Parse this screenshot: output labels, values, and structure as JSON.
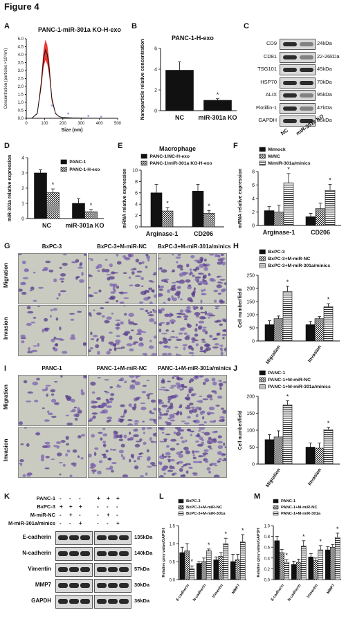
{
  "figure_title": "Figure 4",
  "panels": {
    "A": {
      "label": "A",
      "title": "PANC-1-miR-301a KO-H-exo",
      "ylabel": "Concentration (particles ×10⁶/ml)",
      "xlabel": "Size (nm)",
      "yticks": [
        "0.0",
        "0.5",
        "1.0",
        "1.5",
        "2.0",
        "2.5",
        "3.0",
        "3.5",
        "4.0",
        "4.5",
        "5.0"
      ],
      "xticks": [
        "0",
        "100",
        "200",
        "300",
        "400",
        "500"
      ]
    },
    "B": {
      "label": "B",
      "title": "PANC-1-H-exo",
      "ylabel": "Nanoparticle relative concentration",
      "yticks": [
        "0",
        "2",
        "4",
        "6"
      ],
      "categories": [
        "NC",
        "miR-301a KO"
      ],
      "sig": "*"
    },
    "C": {
      "label": "C",
      "proteins": [
        "CD9",
        "CD81",
        "TSG101",
        "HSP70",
        "ALIX",
        "Flotillin-1",
        "GAPDH"
      ],
      "sizes": [
        "24kDa",
        "22-26kDa",
        "45kDa",
        "70kDa",
        "95kDa",
        "47kDa",
        "36kDa"
      ],
      "lanes": [
        "NC",
        "miR-301a KO"
      ]
    },
    "D": {
      "label": "D",
      "ylabel": "miR-301a relative expression",
      "yticks": [
        "0",
        "1",
        "2",
        "3",
        "4"
      ],
      "categories": [
        "NC",
        "miR-301a KO"
      ],
      "legend": [
        "PANC-1",
        "PANC-1-H-exo"
      ],
      "sig": [
        "*",
        "*"
      ]
    },
    "E": {
      "label": "E",
      "title": "Macrophage",
      "ylabel": "mRNA relative expression",
      "yticks": [
        "0",
        "2",
        "4",
        "6",
        "8",
        "10"
      ],
      "categories": [
        "Arginase-1",
        "CD206"
      ],
      "legend": [
        "PANC-1/NC-H-exo",
        "PANC-1/miR-301a KO-H-exo"
      ],
      "sig": [
        "*",
        "*"
      ]
    },
    "F": {
      "label": "F",
      "ylabel": "mRNA relative expression",
      "yticks": [
        "0",
        "2",
        "4",
        "6",
        "8"
      ],
      "categories": [
        "Arginase-1",
        "CD206"
      ],
      "legend": [
        "M/mock",
        "M/NC",
        "M/miR-301a/minics"
      ],
      "sig": [
        "*",
        "*"
      ]
    },
    "G": {
      "label": "G",
      "cols": [
        "BxPC-3",
        "BxPC-3+M-miR-NC",
        "BxPC-3+M-miR-301a/minics"
      ],
      "rows": [
        "Migration",
        "Invasion"
      ]
    },
    "H": {
      "label": "H",
      "ylabel": "Cell number/field",
      "yticks": [
        "0",
        "50",
        "100",
        "150",
        "200",
        "250"
      ],
      "categories": [
        "Migration",
        "Invasion"
      ],
      "legend": [
        "BxPC-3",
        "BxPC-3+M-miR-NC",
        "BxPC-3+M-miR-301a/minics"
      ],
      "sig": [
        "*",
        "*"
      ]
    },
    "I": {
      "label": "I",
      "cols": [
        "PANC-1",
        "PANC-1+M-miR-NC",
        "PANC-1+M-miR-301a/minics"
      ],
      "rows": [
        "Migration",
        "Invasion"
      ]
    },
    "J": {
      "label": "J",
      "ylabel": "Cell number/field",
      "yticks": [
        "0",
        "50",
        "100",
        "150",
        "200"
      ],
      "categories": [
        "Migration",
        "Invasion"
      ],
      "legend": [
        "PANC-1",
        "PANC-1+M-miR-NC",
        "PANC-1+M-miR-301a/minics"
      ],
      "sig": [
        "*",
        "*"
      ]
    },
    "K": {
      "label": "K",
      "row_labels": [
        "PANC-1",
        "BxPC-3",
        "M-miR-NC",
        "M-miR-301a/minics"
      ],
      "signs": [
        [
          "-",
          "-",
          "-",
          "+",
          "+",
          "+"
        ],
        [
          "+",
          "+",
          "+",
          "-",
          "-",
          "-"
        ],
        [
          "-",
          "+",
          "-",
          "-",
          "+",
          "-"
        ],
        [
          "-",
          "-",
          "+",
          "-",
          "-",
          "+"
        ]
      ],
      "proteins": [
        "E-cadherin",
        "N-cadherin",
        "Vimentin",
        "MMP7",
        "GAPDH"
      ],
      "sizes": [
        "135kDa",
        "140kDa",
        "57kDa",
        "30kDa",
        "36kDa"
      ]
    },
    "L": {
      "label": "L",
      "ylabel": "Relative grey value/GAPDH",
      "yticks": [
        "0.0",
        "0.5",
        "1.0",
        "1.5"
      ],
      "categories": [
        "E-cadherin",
        "N-cadherin",
        "Vimentin",
        "MMP7"
      ],
      "legend": [
        "BxPC-3",
        "BxPC-3+M-miR-NC",
        "BxPC-3+M-miR-301a"
      ],
      "sig": [
        "*",
        "*",
        "*",
        "*"
      ]
    },
    "M": {
      "label": "M",
      "ylabel": "Relative grey value/GAPDH",
      "yticks": [
        "0.0",
        "0.2",
        "0.4",
        "0.6",
        "0.8",
        "1.0"
      ],
      "categories": [
        "E-cadherin",
        "N-cadherin",
        "Vimentin",
        "MMP7"
      ],
      "legend": [
        "PANC-1",
        "PANC-1+M-miR-NC",
        "PANC-1+M-miR-301a"
      ],
      "sig": [
        "*",
        "*",
        "*",
        "*"
      ]
    }
  },
  "chart_data": [
    {
      "id": "A",
      "type": "line",
      "title": "PANC-1-miR-301a KO-H-exo",
      "xlabel": "Size (nm)",
      "ylabel": "Concentration (particles ×10⁶/ml)",
      "xlim": [
        0,
        500
      ],
      "ylim": [
        0,
        5
      ],
      "x": [
        30,
        60,
        80,
        95,
        105,
        115,
        125,
        140,
        160,
        180,
        200,
        250,
        300,
        400,
        500
      ],
      "y": [
        0.0,
        0.3,
        2.0,
        3.8,
        4.3,
        4.0,
        3.2,
        1.2,
        0.3,
        0.1,
        0.05,
        0.02,
        0.01,
        0.0,
        0.0
      ]
    },
    {
      "id": "B",
      "type": "bar",
      "title": "PANC-1-H-exo",
      "categories": [
        "NC",
        "miR-301a KO"
      ],
      "values": [
        3.9,
        1.0
      ],
      "errors": [
        0.8,
        0.15
      ],
      "ylim": [
        0,
        6
      ],
      "ylabel": "Nanoparticle relative concentration"
    },
    {
      "id": "D",
      "type": "bar",
      "categories": [
        "NC",
        "miR-301a KO"
      ],
      "ylim": [
        0,
        4
      ],
      "ylabel": "miR-301a relative expression",
      "series": [
        {
          "name": "PANC-1",
          "values": [
            3.0,
            1.0
          ],
          "errors": [
            0.2,
            0.3
          ]
        },
        {
          "name": "PANC-1-H-exo",
          "values": [
            1.7,
            0.45
          ],
          "errors": [
            0.25,
            0.15
          ]
        }
      ]
    },
    {
      "id": "E",
      "type": "bar",
      "title": "Macrophage",
      "categories": [
        "Arginase-1",
        "CD206"
      ],
      "ylim": [
        0,
        10
      ],
      "ylabel": "mRNA relative expression",
      "series": [
        {
          "name": "PANC-1/NC-H-exo",
          "values": [
            6.0,
            6.3
          ],
          "errors": [
            1.5,
            1.2
          ]
        },
        {
          "name": "PANC-1/miR-301a KO-H-exo",
          "values": [
            2.8,
            2.4
          ],
          "errors": [
            0.6,
            0.5
          ]
        }
      ]
    },
    {
      "id": "F",
      "type": "bar",
      "categories": [
        "Arginase-1",
        "CD206"
      ],
      "ylim": [
        0,
        8
      ],
      "ylabel": "mRNA relative expression",
      "series": [
        {
          "name": "M/mock",
          "values": [
            2.2,
            1.3
          ],
          "errors": [
            0.6,
            0.5
          ]
        },
        {
          "name": "M/NC",
          "values": [
            2.0,
            2.5
          ],
          "errors": [
            1.0,
            0.8
          ]
        },
        {
          "name": "M/miR-301a/minics",
          "values": [
            6.3,
            5.2
          ],
          "errors": [
            1.4,
            0.9
          ]
        }
      ]
    },
    {
      "id": "H",
      "type": "bar",
      "categories": [
        "Migration",
        "Invasion"
      ],
      "ylim": [
        0,
        250
      ],
      "ylabel": "Cell number/field",
      "series": [
        {
          "name": "BxPC-3",
          "values": [
            62,
            62
          ],
          "errors": [
            15,
            12
          ]
        },
        {
          "name": "BxPC-3+M-miR-NC",
          "values": [
            85,
            85
          ],
          "errors": [
            10,
            8
          ]
        },
        {
          "name": "BxPC-3+M-miR-301a/minics",
          "values": [
            188,
            130
          ],
          "errors": [
            20,
            12
          ]
        }
      ]
    },
    {
      "id": "J",
      "type": "bar",
      "categories": [
        "Migration",
        "Invasion"
      ],
      "ylim": [
        0,
        200
      ],
      "ylabel": "Cell number/field",
      "series": [
        {
          "name": "PANC-1",
          "values": [
            72,
            50
          ],
          "errors": [
            15,
            12
          ]
        },
        {
          "name": "PANC-1+M-miR-NC",
          "values": [
            80,
            47
          ],
          "errors": [
            18,
            15
          ]
        },
        {
          "name": "PANC-1+M-miR-301a/minics",
          "values": [
            175,
            102
          ],
          "errors": [
            12,
            6
          ]
        }
      ]
    },
    {
      "id": "L",
      "type": "bar",
      "categories": [
        "E-cadherin",
        "N-cadherin",
        "Vimentin",
        "MMP7"
      ],
      "ylim": [
        0,
        1.5
      ],
      "ylabel": "Relative grey value/GAPDH",
      "series": [
        {
          "name": "BxPC-3",
          "values": [
            0.75,
            0.45,
            0.55,
            0.5
          ],
          "errors": [
            0.15,
            0.05,
            0.08,
            0.2
          ]
        },
        {
          "name": "BxPC-3+M-miR-NC",
          "values": [
            0.8,
            0.5,
            0.65,
            0.55
          ],
          "errors": [
            0.2,
            0.1,
            0.1,
            0.15
          ]
        },
        {
          "name": "BxPC-3+M-miR-301a",
          "values": [
            0.3,
            0.8,
            1.0,
            1.05
          ],
          "errors": [
            0.08,
            0.05,
            0.15,
            0.2
          ]
        }
      ]
    },
    {
      "id": "M",
      "type": "bar",
      "categories": [
        "E-cadherin",
        "N-cadherin",
        "Vimentin",
        "MMP7"
      ],
      "ylim": [
        0,
        1.0
      ],
      "ylabel": "Relative grey value/GAPDH",
      "series": [
        {
          "name": "PANC-1",
          "values": [
            0.72,
            0.28,
            0.42,
            0.55
          ],
          "errors": [
            0.08,
            0.06,
            0.06,
            0.06
          ]
        },
        {
          "name": "PANC-1+M-miR-NC",
          "values": [
            0.5,
            0.32,
            0.35,
            0.6
          ],
          "errors": [
            0.06,
            0.06,
            0.05,
            0.05
          ]
        },
        {
          "name": "PANC-1+M-miR-301a",
          "values": [
            0.32,
            0.62,
            0.55,
            0.78
          ],
          "errors": [
            0.05,
            0.1,
            0.08,
            0.08
          ]
        }
      ]
    }
  ]
}
